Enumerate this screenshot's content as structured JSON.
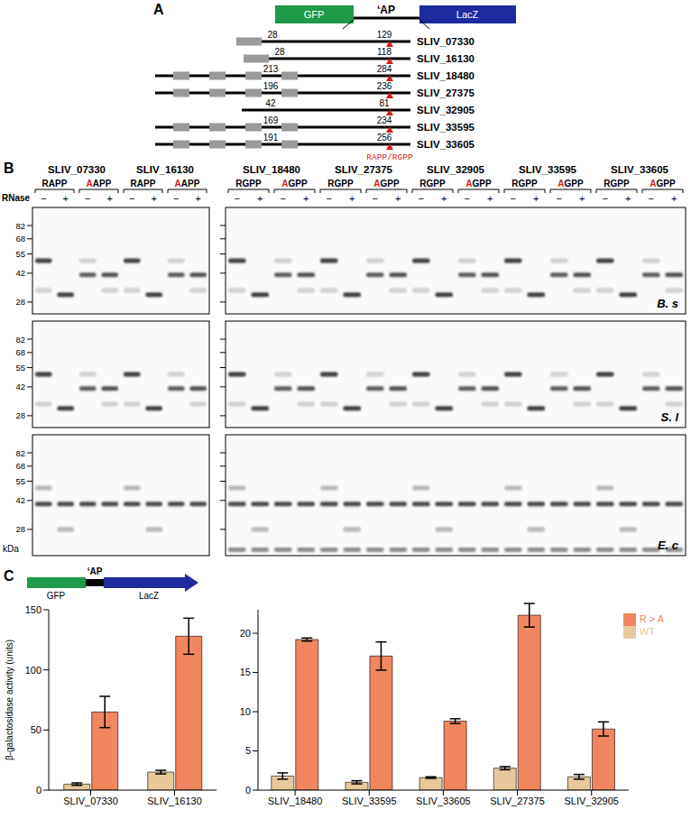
{
  "panels": {
    "A": {
      "letter": "A",
      "construct": {
        "left": "GFP",
        "middle": "‘AP",
        "right": "LacZ"
      },
      "rows": [
        {
          "name": "SLIV_07330",
          "start": 28,
          "end": 129
        },
        {
          "name": "SLIV_16130",
          "start": 28,
          "end": 118
        },
        {
          "name": "SLIV_18480",
          "start": 213,
          "end": 284
        },
        {
          "name": "SLIV_27375",
          "start": 196,
          "end": 236
        },
        {
          "name": "SLIV_32905",
          "start": 42,
          "end": 81
        },
        {
          "name": "SLIV_33595",
          "start": 169,
          "end": 234
        },
        {
          "name": "SLIV_33605",
          "start": 191,
          "end": 256
        }
      ],
      "site_label": "RAPP/RGPP"
    },
    "B": {
      "letter": "B",
      "rnase_label": "RNase",
      "minus": "−",
      "plus": "+",
      "markers": [
        82,
        68,
        55,
        42,
        28
      ],
      "marker_unit": "kDa",
      "species": [
        "B. s",
        "S. l",
        "E. c"
      ],
      "groups": [
        {
          "proteins": [
            "SLIV_07330",
            "SLIV_16130"
          ],
          "wt": "RAPP",
          "mutant": "AAPP"
        },
        {
          "proteins": [
            "SLIV_18480",
            "SLIV_27375",
            "SLIV_32905",
            "SLIV_33595",
            "SLIV_33605"
          ],
          "wt": "RGPP",
          "mutant": "AGPP"
        }
      ]
    },
    "C": {
      "letter": "C",
      "construct": {
        "left": "GFP",
        "middle": "‘AP",
        "right": "LacZ"
      }
    }
  },
  "chart_data": [
    {
      "type": "bar",
      "y_label": "β-galactosidase activity (units)",
      "categories": [
        "SLIV_07330",
        "SLIV_16130"
      ],
      "series": [
        {
          "name": "WT",
          "color": "#e6c89a",
          "values": [
            5,
            15
          ],
          "errors": [
            1,
            1.5
          ]
        },
        {
          "name": "R > A",
          "color": "#f2865f",
          "values": [
            65,
            128
          ],
          "errors": [
            13,
            15
          ]
        }
      ],
      "ylim": [
        0,
        150
      ],
      "yticks": [
        0,
        50,
        100,
        150
      ],
      "grid": false
    },
    {
      "type": "bar",
      "categories": [
        "SLIV_18480",
        "SLIV_33595",
        "SLIV_33605",
        "SLIV_27375",
        "SLIV_32905"
      ],
      "series": [
        {
          "name": "WT",
          "color": "#e6c89a",
          "values": [
            1.8,
            1.0,
            1.6,
            2.8,
            1.7
          ],
          "errors": [
            0.4,
            0.2,
            0.1,
            0.2,
            0.3
          ]
        },
        {
          "name": "R > A",
          "color": "#f2865f",
          "values": [
            19.2,
            17.1,
            8.8,
            22.3,
            7.8
          ],
          "errors": [
            0.2,
            1.8,
            0.3,
            1.5,
            0.9
          ]
        }
      ],
      "ylim": [
        0,
        23
      ],
      "yticks": [
        0,
        5,
        10,
        15,
        20
      ],
      "grid": false,
      "legend": "upper right"
    }
  ]
}
